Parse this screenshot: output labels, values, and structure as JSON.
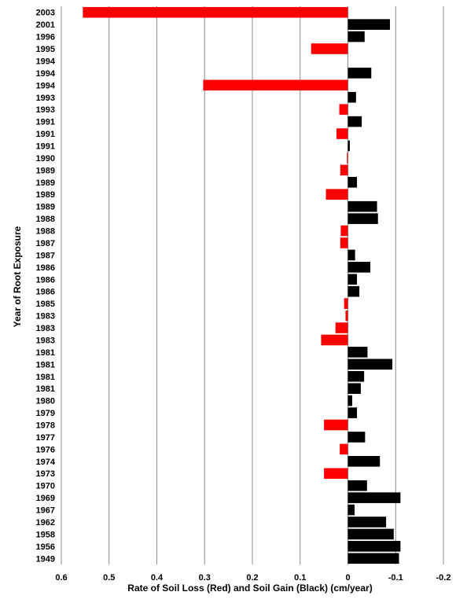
{
  "chart_data": {
    "type": "bar",
    "orientation": "horizontal",
    "xlabel": "Rate of Soil Loss (Red) and Soil Gain (Black)  (cm/year)",
    "ylabel": "Year of Root Exposure",
    "xlim": [
      0.6,
      -0.2
    ],
    "x_ticks": [
      0.6,
      0.5,
      0.4,
      0.3,
      0.2,
      0.1,
      0,
      -0.1,
      -0.2
    ],
    "x_tick_labels": [
      "0.6",
      "0.5",
      "0.4",
      "0.3",
      "0.2",
      "0.1",
      "0",
      "-0.1",
      "-0.2"
    ],
    "grid": "vertical",
    "colors": {
      "loss": "#ff0000",
      "gain": "#000000"
    },
    "categories": [
      "2003",
      "2001",
      "1996",
      "1995",
      "1994",
      "1994",
      "1994",
      "1993",
      "1993",
      "1991",
      "1991",
      "1991",
      "1990",
      "1989",
      "1989",
      "1989",
      "1989",
      "1988",
      "1988",
      "1987",
      "1987",
      "1986",
      "1986",
      "1986",
      "1985",
      "1983",
      "1983",
      "1983",
      "1981",
      "1981",
      "1981",
      "1981",
      "1980",
      "1979",
      "1978",
      "1977",
      "1976",
      "1974",
      "1973",
      "1970",
      "1969",
      "1967",
      "1962",
      "1958",
      "1956",
      "1949"
    ],
    "values": [
      0.555,
      -0.088,
      -0.035,
      0.077,
      0,
      -0.049,
      0.303,
      -0.017,
      0.018,
      -0.029,
      0.024,
      -0.004,
      0.002,
      0.016,
      -0.019,
      0.046,
      -0.061,
      -0.063,
      0.015,
      0.016,
      -0.015,
      -0.047,
      -0.019,
      -0.024,
      0.008,
      0.005,
      0.026,
      0.056,
      -0.041,
      -0.093,
      -0.034,
      -0.027,
      -0.009,
      -0.019,
      0.05,
      -0.036,
      0.017,
      -0.067,
      0.05,
      -0.04,
      -0.11,
      -0.014,
      -0.08,
      -0.096,
      -0.11,
      -0.107
    ]
  }
}
